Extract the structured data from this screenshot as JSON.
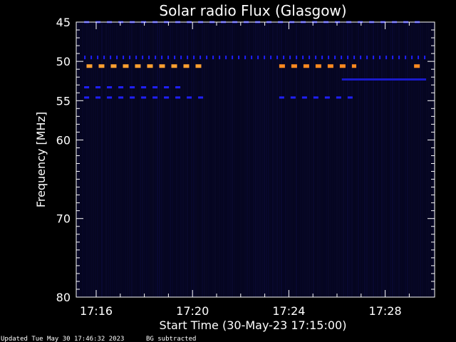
{
  "chart_data": {
    "type": "heatmap",
    "title": "Solar radio Flux (Glasgow)",
    "xlabel": "Start Time (30-May-23 17:15:00)",
    "ylabel": "Frequency [MHz]",
    "x_range_minutes": [
      17.25,
      17.514
    ],
    "y_range_mhz": [
      45,
      80
    ],
    "x_ticks": [
      "17:16",
      "17:20",
      "17:24",
      "17:28"
    ],
    "x_tick_minutes": [
      16,
      20,
      24,
      28
    ],
    "y_ticks": [
      "45",
      "50",
      "55",
      "60",
      "70",
      "80"
    ],
    "y_tick_values": [
      45,
      50,
      55,
      60,
      70,
      80
    ],
    "background_color": "#05051f",
    "bands": [
      {
        "freq_mhz": 45.0,
        "start_min": 15.5,
        "end_min": 29.7,
        "color": "#1a1ae6",
        "pattern": "dashed"
      },
      {
        "freq_mhz": 49.5,
        "start_min": 15.5,
        "end_min": 29.7,
        "color": "#2020ff",
        "pattern": "dotted"
      },
      {
        "freq_mhz": 50.6,
        "start_min": 15.6,
        "end_min": 20.6,
        "color": "#ffa030",
        "pattern": "dashed"
      },
      {
        "freq_mhz": 50.6,
        "start_min": 23.6,
        "end_min": 26.8,
        "color": "#ff8a20",
        "pattern": "dashed"
      },
      {
        "freq_mhz": 50.6,
        "start_min": 29.2,
        "end_min": 29.7,
        "color": "#ff8a20",
        "pattern": "dashed"
      },
      {
        "freq_mhz": 53.3,
        "start_min": 15.5,
        "end_min": 19.6,
        "color": "#2020ff",
        "pattern": "dashed"
      },
      {
        "freq_mhz": 54.6,
        "start_min": 15.5,
        "end_min": 20.6,
        "color": "#2020ff",
        "pattern": "dashed"
      },
      {
        "freq_mhz": 54.6,
        "start_min": 23.6,
        "end_min": 26.8,
        "color": "#2020ff",
        "pattern": "dashed"
      },
      {
        "freq_mhz": 52.3,
        "start_min": 26.2,
        "end_min": 29.7,
        "color": "#1a1acc",
        "pattern": "solid"
      }
    ]
  },
  "footer": {
    "updated": "Updated Tue May 30 17:46:32 2023",
    "note": "BG subtracted"
  }
}
